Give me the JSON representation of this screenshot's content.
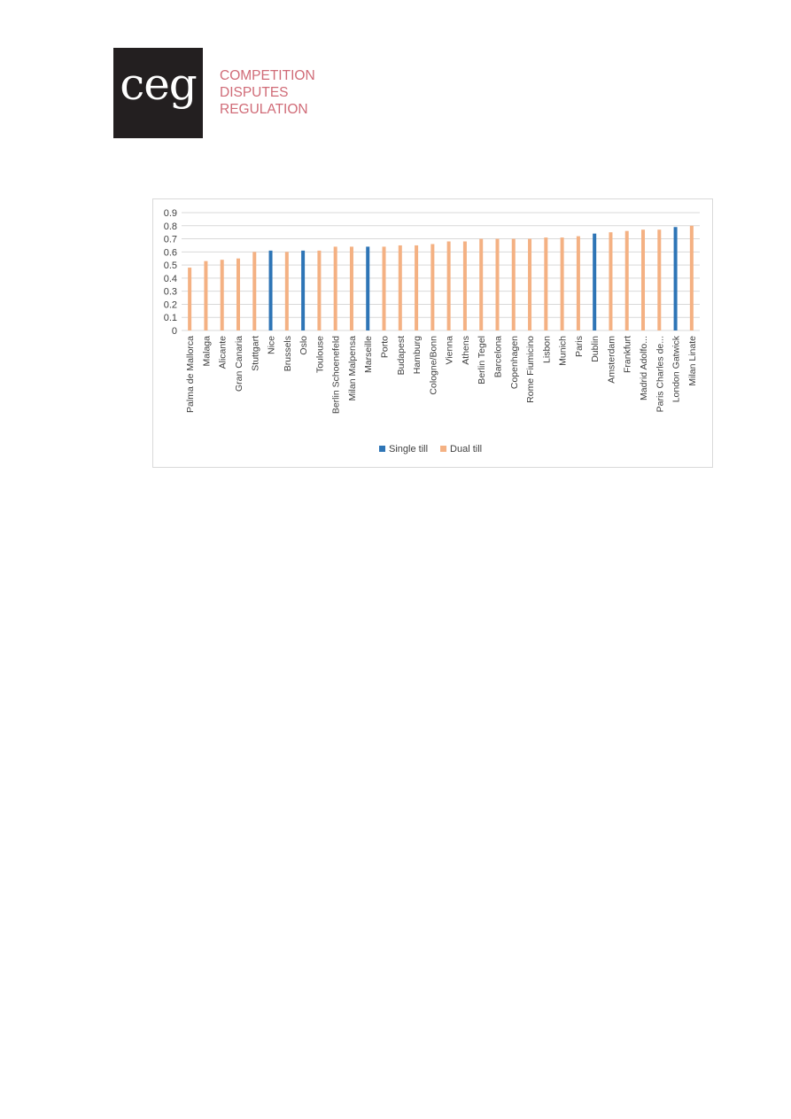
{
  "logo": {
    "mark": "ceg",
    "lines": [
      "COMPETITION",
      "DISPUTES",
      "REGULATION"
    ],
    "mark_bg": "#231f20",
    "tagline_color": "#d06b77"
  },
  "chart_data": {
    "type": "bar",
    "categories": [
      "Palma de Mallorca",
      "Malaga",
      "Alicante",
      "Gran Canaria",
      "Stuttgart",
      "Nice",
      "Brussels",
      "Oslo",
      "Toulouse",
      "Berlin Schoenefeld",
      "Milan Malpensa",
      "Marseille",
      "Porto",
      "Budapest",
      "Hamburg",
      "Cologne/Bonn",
      "Vienna",
      "Athens",
      "Berlin Tegel",
      "Barcelona",
      "Copenhagen",
      "Rome Fiumicino",
      "Lisbon",
      "Munich",
      "Paris",
      "Dublin",
      "Amsterdam",
      "Frankfurt",
      "Madrid Adolfo...",
      "Paris Charles de...",
      "London Gatwick",
      "Milan Linate"
    ],
    "values": [
      0.48,
      0.53,
      0.54,
      0.55,
      0.6,
      0.61,
      0.6,
      0.61,
      0.61,
      0.64,
      0.64,
      0.64,
      0.64,
      0.65,
      0.65,
      0.66,
      0.68,
      0.68,
      0.7,
      0.7,
      0.7,
      0.7,
      0.71,
      0.71,
      0.72,
      0.74,
      0.75,
      0.76,
      0.77,
      0.77,
      0.79,
      0.8
    ],
    "till_type": [
      "Dual till",
      "Dual till",
      "Dual till",
      "Dual till",
      "Dual till",
      "Single till",
      "Dual till",
      "Single till",
      "Dual till",
      "Dual till",
      "Dual till",
      "Single till",
      "Dual till",
      "Dual till",
      "Dual till",
      "Dual till",
      "Dual till",
      "Dual till",
      "Dual till",
      "Dual till",
      "Dual till",
      "Dual till",
      "Dual till",
      "Dual till",
      "Dual till",
      "Single till",
      "Dual till",
      "Dual till",
      "Dual till",
      "Dual till",
      "Single till",
      "Dual till"
    ],
    "yticks": [
      "0",
      "0.1",
      "0.2",
      "0.3",
      "0.4",
      "0.5",
      "0.6",
      "0.7",
      "0.8",
      "0.9"
    ],
    "ylim": [
      0,
      0.9
    ],
    "grid": true,
    "legend_position": "bottom",
    "legend": [
      {
        "name": "Single till",
        "color": "#2e75b6"
      },
      {
        "name": "Dual till",
        "color": "#f4b183"
      }
    ],
    "gridline_color": "#d9d9d9",
    "title": "",
    "xlabel": "",
    "ylabel": ""
  }
}
